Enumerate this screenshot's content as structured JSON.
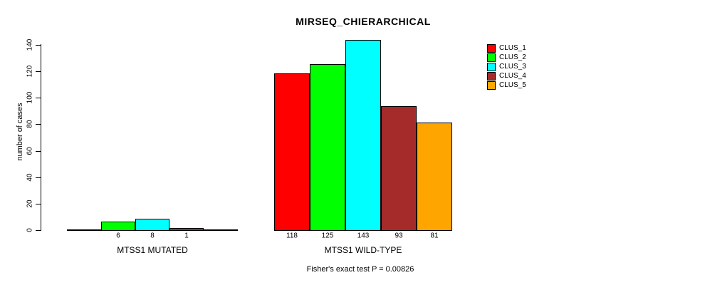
{
  "chart_data": {
    "type": "bar",
    "title": "MIRSEQ_CHIERARCHICAL",
    "ylabel": "number of cases",
    "ylim": [
      0,
      140
    ],
    "yticks": [
      0,
      20,
      40,
      60,
      80,
      100,
      120,
      140
    ],
    "categories": [
      "MTSS1 MUTATED",
      "MTSS1 WILD-TYPE"
    ],
    "series": [
      {
        "name": "CLUS_1",
        "color": "#FF0000",
        "values": [
          0,
          118
        ]
      },
      {
        "name": "CLUS_2",
        "color": "#00FF00",
        "values": [
          6,
          125
        ]
      },
      {
        "name": "CLUS_3",
        "color": "#00FFFF",
        "values": [
          8,
          143
        ]
      },
      {
        "name": "CLUS_4",
        "color": "#A52A2A",
        "values": [
          1,
          93
        ]
      },
      {
        "name": "CLUS_5",
        "color": "#FFA500",
        "values": [
          0,
          81
        ]
      }
    ],
    "bar_value_labels": [
      [
        "",
        "6",
        "8",
        "1",
        ""
      ],
      [
        "118",
        "125",
        "143",
        "93",
        "81"
      ]
    ],
    "legend_position": "right",
    "grid": false,
    "footnote": "Fisher's exact test P = 0.00826"
  }
}
